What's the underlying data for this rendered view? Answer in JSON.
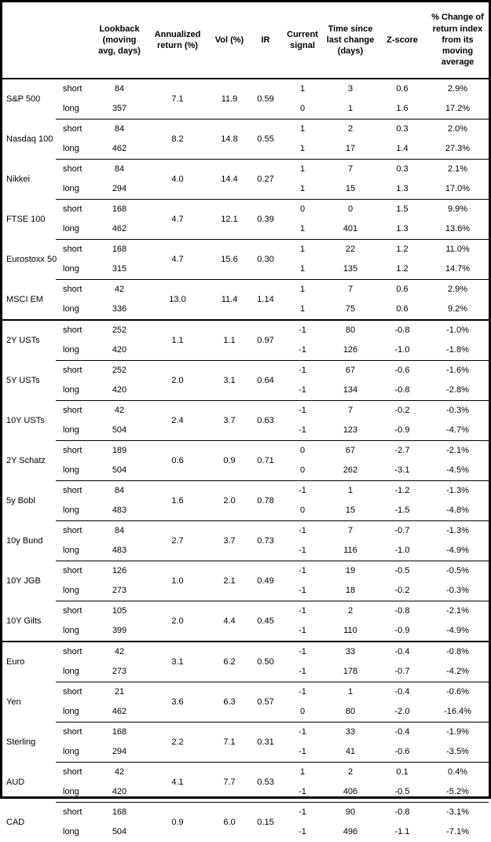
{
  "table": {
    "horizons": [
      "short",
      "long"
    ],
    "header": {
      "asset": "",
      "horizon": "",
      "lookback": "Lookback (moving avg, days)",
      "annualized_return": "Annualized return (%)",
      "vol": "Vol (%)",
      "ir": "IR",
      "current_signal": "Current signal",
      "time_since_last_change": "Time since last change (days)",
      "zscore": "Z-score",
      "pct_change": "% Change of return index from its moving average"
    },
    "sections": [
      {
        "assets": [
          {
            "name": "S&P 500",
            "annualized_return": "7.1",
            "vol": "11.9",
            "ir": "0.59",
            "short": {
              "lookback": "84",
              "signal": "1",
              "time_since": "3",
              "zscore": "0.6",
              "pct_change": "2.9%"
            },
            "long": {
              "lookback": "357",
              "signal": "0",
              "time_since": "1",
              "zscore": "1.6",
              "pct_change": "17.2%"
            }
          },
          {
            "name": "Nasdaq 100",
            "annualized_return": "8.2",
            "vol": "14.8",
            "ir": "0.55",
            "short": {
              "lookback": "84",
              "signal": "1",
              "time_since": "2",
              "zscore": "0.3",
              "pct_change": "2.0%"
            },
            "long": {
              "lookback": "462",
              "signal": "1",
              "time_since": "17",
              "zscore": "1.4",
              "pct_change": "27.3%"
            }
          },
          {
            "name": "Nikkei",
            "annualized_return": "4.0",
            "vol": "14.4",
            "ir": "0.27",
            "short": {
              "lookback": "84",
              "signal": "1",
              "time_since": "7",
              "zscore": "0.3",
              "pct_change": "2.1%"
            },
            "long": {
              "lookback": "294",
              "signal": "1",
              "time_since": "15",
              "zscore": "1.3",
              "pct_change": "17.0%"
            }
          },
          {
            "name": "FTSE 100",
            "annualized_return": "4.7",
            "vol": "12.1",
            "ir": "0.39",
            "short": {
              "lookback": "168",
              "signal": "0",
              "time_since": "0",
              "zscore": "1.5",
              "pct_change": "9.9%"
            },
            "long": {
              "lookback": "462",
              "signal": "1",
              "time_since": "401",
              "zscore": "1.3",
              "pct_change": "13.6%"
            }
          },
          {
            "name": "Eurostoxx 50",
            "annualized_return": "4.7",
            "vol": "15.6",
            "ir": "0.30",
            "short": {
              "lookback": "168",
              "signal": "1",
              "time_since": "22",
              "zscore": "1.2",
              "pct_change": "11.0%"
            },
            "long": {
              "lookback": "315",
              "signal": "1",
              "time_since": "135",
              "zscore": "1.2",
              "pct_change": "14.7%"
            }
          },
          {
            "name": "MSCI EM",
            "annualized_return": "13.0",
            "vol": "11.4",
            "ir": "1.14",
            "short": {
              "lookback": "42",
              "signal": "1",
              "time_since": "7",
              "zscore": "0.6",
              "pct_change": "2.9%"
            },
            "long": {
              "lookback": "336",
              "signal": "1",
              "time_since": "75",
              "zscore": "0.6",
              "pct_change": "9.2%"
            }
          }
        ]
      },
      {
        "assets": [
          {
            "name": "2Y USTs",
            "annualized_return": "1.1",
            "vol": "1.1",
            "ir": "0.97",
            "short": {
              "lookback": "252",
              "signal": "-1",
              "time_since": "80",
              "zscore": "-0.8",
              "pct_change": "-1.0%"
            },
            "long": {
              "lookback": "420",
              "signal": "-1",
              "time_since": "126",
              "zscore": "-1.0",
              "pct_change": "-1.8%"
            }
          },
          {
            "name": "5Y USTs",
            "annualized_return": "2.0",
            "vol": "3.1",
            "ir": "0.64",
            "short": {
              "lookback": "252",
              "signal": "-1",
              "time_since": "67",
              "zscore": "-0.6",
              "pct_change": "-1.6%"
            },
            "long": {
              "lookback": "420",
              "signal": "-1",
              "time_since": "134",
              "zscore": "-0.8",
              "pct_change": "-2.8%"
            }
          },
          {
            "name": "10Y USTs",
            "annualized_return": "2.4",
            "vol": "3.7",
            "ir": "0.63",
            "short": {
              "lookback": "42",
              "signal": "-1",
              "time_since": "7",
              "zscore": "-0.2",
              "pct_change": "-0.3%"
            },
            "long": {
              "lookback": "504",
              "signal": "-1",
              "time_since": "123",
              "zscore": "-0.9",
              "pct_change": "-4.7%"
            }
          },
          {
            "name": "2Y Schatz",
            "annualized_return": "0.6",
            "vol": "0.9",
            "ir": "0.71",
            "short": {
              "lookback": "189",
              "signal": "0",
              "time_since": "67",
              "zscore": "-2.7",
              "pct_change": "-2.1%"
            },
            "long": {
              "lookback": "504",
              "signal": "0",
              "time_since": "262",
              "zscore": "-3.1",
              "pct_change": "-4.5%"
            }
          },
          {
            "name": "5y Bobl",
            "annualized_return": "1.6",
            "vol": "2.0",
            "ir": "0.78",
            "short": {
              "lookback": "84",
              "signal": "-1",
              "time_since": "1",
              "zscore": "-1.2",
              "pct_change": "-1.3%"
            },
            "long": {
              "lookback": "483",
              "signal": "0",
              "time_since": "15",
              "zscore": "-1.5",
              "pct_change": "-4.8%"
            }
          },
          {
            "name": "10y Bund",
            "annualized_return": "2.7",
            "vol": "3.7",
            "ir": "0.73",
            "short": {
              "lookback": "84",
              "signal": "-1",
              "time_since": "7",
              "zscore": "-0.7",
              "pct_change": "-1.3%"
            },
            "long": {
              "lookback": "483",
              "signal": "-1",
              "time_since": "116",
              "zscore": "-1.0",
              "pct_change": "-4.9%"
            }
          },
          {
            "name": "10Y JGB",
            "annualized_return": "1.0",
            "vol": "2.1",
            "ir": "0.49",
            "short": {
              "lookback": "126",
              "signal": "-1",
              "time_since": "19",
              "zscore": "-0.5",
              "pct_change": "-0.5%"
            },
            "long": {
              "lookback": "273",
              "signal": "-1",
              "time_since": "18",
              "zscore": "-0.2",
              "pct_change": "-0.3%"
            }
          },
          {
            "name": "10Y Gilts",
            "annualized_return": "2.0",
            "vol": "4.4",
            "ir": "0.45",
            "short": {
              "lookback": "105",
              "signal": "-1",
              "time_since": "2",
              "zscore": "-0.8",
              "pct_change": "-2.1%"
            },
            "long": {
              "lookback": "399",
              "signal": "-1",
              "time_since": "110",
              "zscore": "-0.9",
              "pct_change": "-4.9%"
            }
          }
        ]
      },
      {
        "assets": [
          {
            "name": "Euro",
            "annualized_return": "3.1",
            "vol": "6.2",
            "ir": "0.50",
            "short": {
              "lookback": "42",
              "signal": "-1",
              "time_since": "33",
              "zscore": "-0.4",
              "pct_change": "-0.8%"
            },
            "long": {
              "lookback": "273",
              "signal": "-1",
              "time_since": "178",
              "zscore": "-0.7",
              "pct_change": "-4.2%"
            }
          },
          {
            "name": "Yen",
            "annualized_return": "3.6",
            "vol": "6.3",
            "ir": "0.57",
            "short": {
              "lookback": "21",
              "signal": "-1",
              "time_since": "1",
              "zscore": "-0.4",
              "pct_change": "-0.6%"
            },
            "long": {
              "lookback": "462",
              "signal": "0",
              "time_since": "80",
              "zscore": "-2.0",
              "pct_change": "-16.4%"
            }
          },
          {
            "name": "Sterling",
            "annualized_return": "2.2",
            "vol": "7.1",
            "ir": "0.31",
            "short": {
              "lookback": "168",
              "signal": "-1",
              "time_since": "33",
              "zscore": "-0.4",
              "pct_change": "-1.9%"
            },
            "long": {
              "lookback": "294",
              "signal": "-1",
              "time_since": "41",
              "zscore": "-0.6",
              "pct_change": "-3.5%"
            }
          },
          {
            "name": "AUD",
            "annualized_return": "4.1",
            "vol": "7.7",
            "ir": "0.53",
            "short": {
              "lookback": "42",
              "signal": "1",
              "time_since": "2",
              "zscore": "0.1",
              "pct_change": "0.4%"
            },
            "long": {
              "lookback": "420",
              "signal": "-1",
              "time_since": "406",
              "zscore": "-0.5",
              "pct_change": "-5.2%"
            }
          },
          {
            "name": "CAD",
            "annualized_return": "0.9",
            "vol": "6.0",
            "ir": "0.15",
            "short": {
              "lookback": "168",
              "signal": "-1",
              "time_since": "90",
              "zscore": "-0.8",
              "pct_change": "-3.1%"
            },
            "long": {
              "lookback": "504",
              "signal": "-1",
              "time_since": "496",
              "zscore": "-1.1",
              "pct_change": "-7.1%"
            }
          }
        ]
      }
    ]
  }
}
